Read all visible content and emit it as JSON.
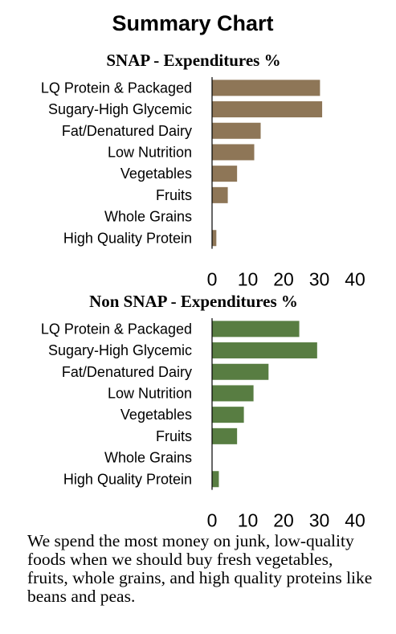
{
  "page_title": "Summary Chart",
  "chart_data": [
    {
      "type": "bar",
      "orientation": "horizontal",
      "title": "SNAP - Expenditures %",
      "categories": [
        "LQ Protein & Packaged",
        "Sugary-High Glycemic",
        "Fat/Denatured Dairy",
        "Low Nutrition",
        "Vegetables",
        "Fruits",
        "Whole Grains",
        "High Quality Protein"
      ],
      "values": [
        30.2,
        30.8,
        13.6,
        11.8,
        7.0,
        4.4,
        0.1,
        1.2
      ],
      "xlim": [
        0,
        40
      ],
      "xticks": [
        0,
        10,
        20,
        30,
        40
      ],
      "color": "#8e7657",
      "grid": false,
      "legend": "none"
    },
    {
      "type": "bar",
      "orientation": "horizontal",
      "title": "Non SNAP - Expenditures %",
      "categories": [
        "LQ Protein & Packaged",
        "Sugary-High Glycemic",
        "Fat/Denatured Dairy",
        "Low Nutrition",
        "Vegetables",
        "Fruits",
        "Whole Grains",
        "High Quality Protein"
      ],
      "values": [
        24.4,
        29.4,
        15.8,
        11.6,
        8.9,
        7.0,
        0.1,
        1.9
      ],
      "xlim": [
        0,
        40
      ],
      "xticks": [
        0,
        10,
        20,
        30,
        40
      ],
      "color": "#587d42",
      "grid": false,
      "legend": "none"
    }
  ],
  "caption": "We spend the most money on junk, low-quality foods when we should buy fresh vegetables, fruits, whole grains, and high quality proteins like beans and peas."
}
